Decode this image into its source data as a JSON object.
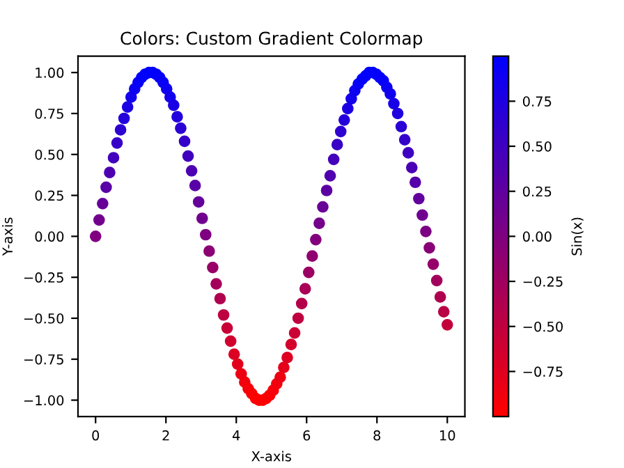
{
  "chart_data": {
    "type": "scatter",
    "title": "Colors: Custom Gradient Colormap",
    "xlabel": "X-axis",
    "ylabel": "Y-axis",
    "clabel": "Sin(x)",
    "x": [
      0.0,
      0.1,
      0.2,
      0.3,
      0.4,
      0.51,
      0.61,
      0.71,
      0.81,
      0.91,
      1.01,
      1.11,
      1.21,
      1.31,
      1.41,
      1.52,
      1.62,
      1.72,
      1.82,
      1.92,
      2.02,
      2.12,
      2.22,
      2.32,
      2.42,
      2.53,
      2.63,
      2.73,
      2.83,
      2.93,
      3.03,
      3.13,
      3.23,
      3.33,
      3.43,
      3.54,
      3.64,
      3.74,
      3.84,
      3.94,
      4.04,
      4.14,
      4.24,
      4.34,
      4.44,
      4.55,
      4.65,
      4.75,
      4.85,
      4.95,
      5.05,
      5.15,
      5.25,
      5.35,
      5.45,
      5.56,
      5.66,
      5.76,
      5.86,
      5.96,
      6.06,
      6.16,
      6.26,
      6.36,
      6.46,
      6.57,
      6.67,
      6.77,
      6.87,
      6.97,
      7.07,
      7.17,
      7.27,
      7.37,
      7.47,
      7.58,
      7.68,
      7.78,
      7.88,
      7.98,
      8.08,
      8.18,
      8.28,
      8.38,
      8.48,
      8.59,
      8.69,
      8.79,
      8.89,
      8.99,
      9.09,
      9.19,
      9.29,
      9.39,
      9.49,
      9.6,
      9.7,
      9.8,
      9.9,
      10.0
    ],
    "values": [
      0.0,
      0.1,
      0.2,
      0.3,
      0.39,
      0.48,
      0.57,
      0.65,
      0.72,
      0.79,
      0.85,
      0.9,
      0.94,
      0.97,
      0.99,
      1.0,
      1.0,
      0.99,
      0.97,
      0.94,
      0.9,
      0.85,
      0.8,
      0.73,
      0.66,
      0.58,
      0.49,
      0.4,
      0.31,
      0.21,
      0.11,
      0.01,
      -0.09,
      -0.19,
      -0.29,
      -0.38,
      -0.48,
      -0.56,
      -0.64,
      -0.72,
      -0.78,
      -0.84,
      -0.89,
      -0.93,
      -0.96,
      -0.99,
      -1.0,
      -1.0,
      -0.99,
      -0.97,
      -0.94,
      -0.9,
      -0.86,
      -0.8,
      -0.74,
      -0.66,
      -0.59,
      -0.5,
      -0.41,
      -0.32,
      -0.22,
      -0.12,
      -0.02,
      0.08,
      0.18,
      0.28,
      0.37,
      0.47,
      0.56,
      0.64,
      0.71,
      0.78,
      0.84,
      0.89,
      0.93,
      0.96,
      0.98,
      1.0,
      1.0,
      0.99,
      0.97,
      0.95,
      0.91,
      0.87,
      0.81,
      0.75,
      0.67,
      0.59,
      0.51,
      0.42,
      0.33,
      0.23,
      0.13,
      0.03,
      -0.07,
      -0.17,
      -0.27,
      -0.37,
      -0.46,
      -0.54
    ],
    "cvalues": [
      0.0,
      0.1,
      0.2,
      0.3,
      0.39,
      0.48,
      0.57,
      0.65,
      0.72,
      0.79,
      0.85,
      0.9,
      0.94,
      0.97,
      0.99,
      1.0,
      1.0,
      0.99,
      0.97,
      0.94,
      0.9,
      0.85,
      0.8,
      0.73,
      0.66,
      0.58,
      0.49,
      0.4,
      0.31,
      0.21,
      0.11,
      0.01,
      -0.09,
      -0.19,
      -0.29,
      -0.38,
      -0.48,
      -0.56,
      -0.64,
      -0.72,
      -0.78,
      -0.84,
      -0.89,
      -0.93,
      -0.96,
      -0.99,
      -1.0,
      -1.0,
      -0.99,
      -0.97,
      -0.94,
      -0.9,
      -0.86,
      -0.8,
      -0.74,
      -0.66,
      -0.59,
      -0.5,
      -0.41,
      -0.32,
      -0.22,
      -0.12,
      -0.02,
      0.08,
      0.18,
      0.28,
      0.37,
      0.47,
      0.56,
      0.64,
      0.71,
      0.78,
      0.84,
      0.89,
      0.93,
      0.96,
      0.98,
      1.0,
      1.0,
      0.99,
      0.97,
      0.95,
      0.91,
      0.87,
      0.81,
      0.75,
      0.67,
      0.59,
      0.51,
      0.42,
      0.33,
      0.23,
      0.13,
      0.03,
      -0.07,
      -0.17,
      -0.27,
      -0.37,
      -0.46,
      -0.54
    ],
    "colors": [
      "#80007f",
      "#73008c",
      "#660099",
      "#5900a6",
      "#4e00b1",
      "#4200bd",
      "#3700c8",
      "#2d00d2",
      "#2400db",
      "#1b00e4",
      "#1300ec",
      "#0d00f2",
      "#0800f7",
      "#0400fb",
      "#0100fe",
      "#0000ff",
      "#0000ff",
      "#0100fe",
      "#0400fb",
      "#0800f7",
      "#0d00f2",
      "#1300ec",
      "#1a00e5",
      "#2200dd",
      "#2b00d4",
      "#3600c9",
      "#4100be",
      "#4d00b2",
      "#5800a7",
      "#65009a",
      "#71008e",
      "#7e0081",
      "#8b0074",
      "#980067",
      "#a4005b",
      "#b0004f",
      "#bd0042",
      "#c70038",
      "#d1002e",
      "#db0024",
      "#e3001c",
      "#eb0014",
      "#f1000e",
      "#f60009",
      "#fa0005",
      "#fe0001",
      "#ff0000",
      "#ff0000",
      "#fe0001",
      "#fb0004",
      "#f70008",
      "#f2000d",
      "#ed0012",
      "#e60019",
      "#de0021",
      "#d4002b",
      "#cb0034",
      "#bf0040",
      "#b4004b",
      "#a80057",
      "#9c0063",
      "#8f0070",
      "#82007d",
      "#75008a",
      "#690096",
      "#5c00a3",
      "#5000af",
      "#4400bb",
      "#3800c7",
      "#2e00d1",
      "#2500da",
      "#1c00e3",
      "#1400eb",
      "#0e00f1",
      "#0900f6",
      "#0500fa",
      "#0300fc",
      "#0000ff",
      "#0000ff",
      "#0100fe",
      "#0400fb",
      "#0600f9",
      "#0b00f4",
      "#1100ee",
      "#1800e7",
      "#2000df",
      "#2a00d5",
      "#3400cb",
      "#3e00c1",
      "#4a00b5",
      "#5500aa",
      "#62009d",
      "#6f0090",
      "#7c0083",
      "#880077",
      "#95006a",
      "#a2005d",
      "#af0050",
      "#ba0045",
      "#c4003b"
    ],
    "marker": "circle",
    "xlim": [
      -0.5,
      10.5
    ],
    "xticks": [
      0,
      2,
      4,
      6,
      8,
      10
    ],
    "ylim": [
      -1.1,
      1.1
    ],
    "yticks": [
      {
        "value": -1,
        "label": "−1.00"
      },
      {
        "value": -0.75,
        "label": "−0.75"
      },
      {
        "value": -0.5,
        "label": "−0.50"
      },
      {
        "value": -0.25,
        "label": "−0.25"
      },
      {
        "value": 0,
        "label": "0.00"
      },
      {
        "value": 0.25,
        "label": "0.25"
      },
      {
        "value": 0.5,
        "label": "0.50"
      },
      {
        "value": 0.75,
        "label": "0.75"
      },
      {
        "value": 1,
        "label": "1.00"
      }
    ],
    "clim": [
      -1,
      1
    ],
    "cticks": [
      {
        "value": -0.75,
        "label": "−0.75"
      },
      {
        "value": -0.5,
        "label": "−0.50"
      },
      {
        "value": -0.25,
        "label": "−0.25"
      },
      {
        "value": 0,
        "label": "0.00"
      },
      {
        "value": 0.25,
        "label": "0.25"
      },
      {
        "value": 0.5,
        "label": "0.50"
      },
      {
        "value": 0.75,
        "label": "0.75"
      }
    ],
    "grid": false,
    "legend": false
  }
}
